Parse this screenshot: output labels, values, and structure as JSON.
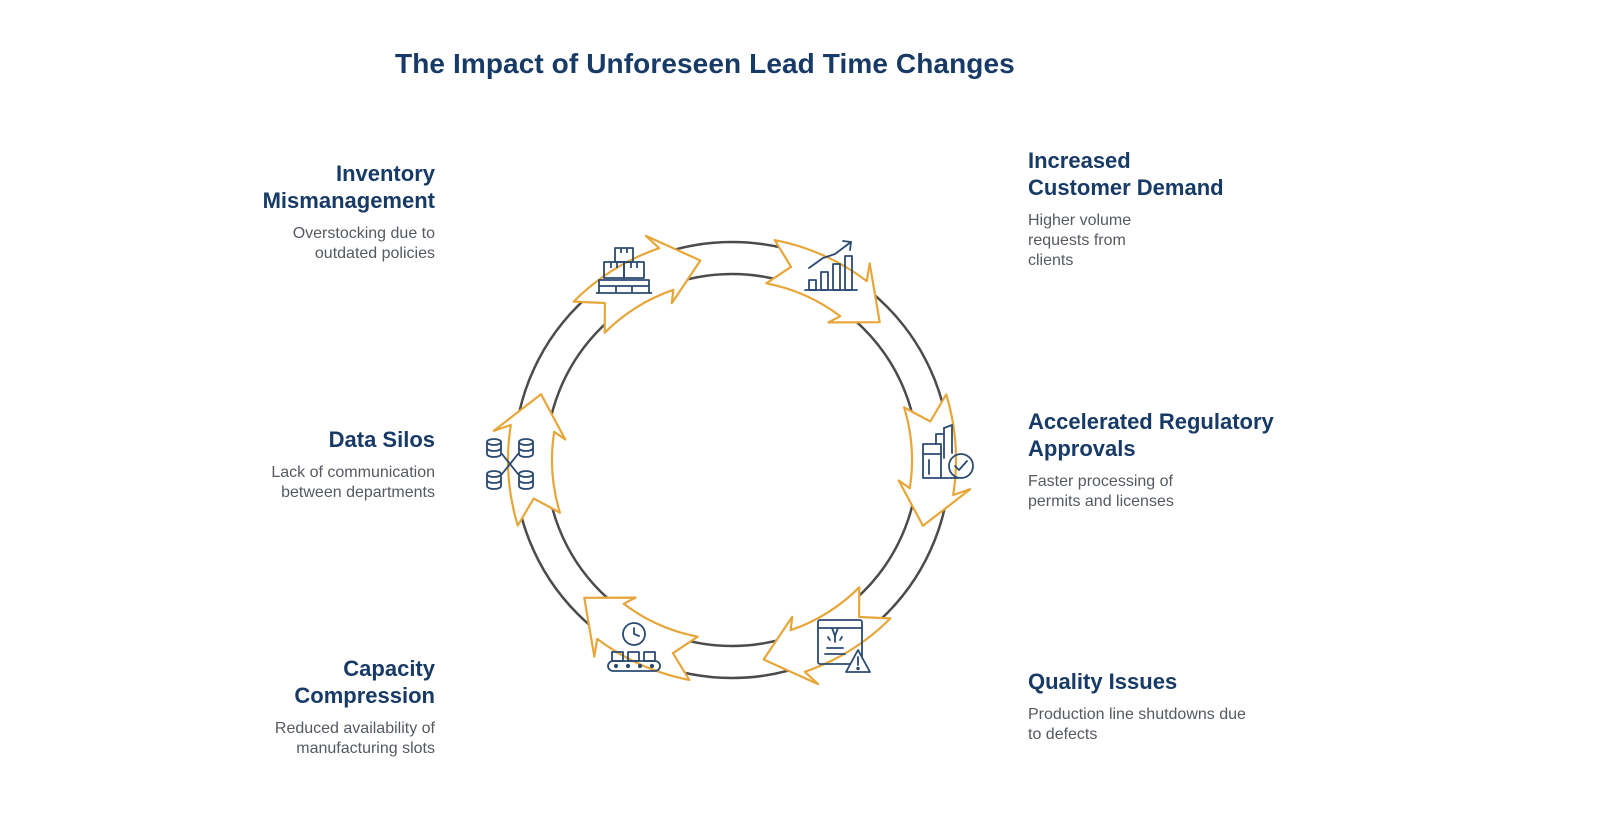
{
  "title": "The Impact of Unforeseen Lead Time Changes",
  "colors": {
    "accent": "#e7a63a",
    "heading": "#173a66",
    "ring": "#4b4b4b",
    "icon": "#2b4a70",
    "text": "#555a60"
  },
  "items": [
    {
      "key": "inventory",
      "title_lines": [
        "Inventory",
        "Mismanagement"
      ],
      "desc_lines": [
        "Overstocking due to",
        "outdated policies"
      ],
      "icon": "boxes-on-pallet-icon"
    },
    {
      "key": "demand",
      "title_lines": [
        "Increased",
        "Customer Demand"
      ],
      "desc_lines": [
        "Higher volume",
        "requests from",
        "clients"
      ],
      "icon": "growth-chart-icon"
    },
    {
      "key": "regulatory",
      "title_lines": [
        "Accelerated Regulatory",
        "Approvals"
      ],
      "desc_lines": [
        "Faster processing of",
        "permits and licenses"
      ],
      "icon": "approved-building-icon"
    },
    {
      "key": "quality",
      "title_lines": [
        "Quality Issues"
      ],
      "desc_lines": [
        "Production line shutdowns due",
        "to defects"
      ],
      "icon": "machine-warning-icon"
    },
    {
      "key": "capacity",
      "title_lines": [
        "Capacity",
        "Compression"
      ],
      "desc_lines": [
        "Reduced availability of",
        "manufacturing slots"
      ],
      "icon": "conveyor-clock-icon"
    },
    {
      "key": "silos",
      "title_lines": [
        "Data Silos"
      ],
      "desc_lines": [
        "Lack of communication",
        "between departments"
      ],
      "icon": "database-network-icon"
    }
  ]
}
